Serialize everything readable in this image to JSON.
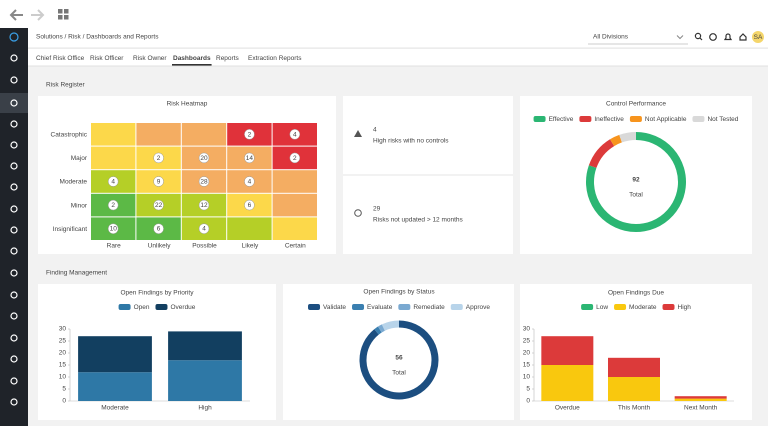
{
  "top_bar": {
    "breadcrumb": "Solutions / Risk / Dashboards and Reports",
    "division": "All Divisions",
    "user_initials": "SA"
  },
  "tabs": {
    "items": [
      "Chief Risk Office",
      "Risk Officer",
      "Risk Owner",
      "Dashboards",
      "Reports",
      "Extraction Reports"
    ],
    "active": 3
  },
  "risk_register": {
    "title": "Risk Register",
    "heatmap": {
      "title": "Risk Heatmap",
      "rows": [
        "Catastrophic",
        "Major",
        "Moderate",
        "Minor",
        "Insignificant"
      ],
      "columns": [
        "Rare",
        "Unlikely",
        "Possible",
        "Likely",
        "Certain"
      ],
      "counts": [
        [
          null,
          null,
          null,
          2,
          4
        ],
        [
          null,
          2,
          20,
          14,
          2
        ],
        [
          4,
          9,
          28,
          4,
          null
        ],
        [
          2,
          22,
          12,
          6,
          null
        ],
        [
          10,
          6,
          4,
          null,
          null
        ]
      ],
      "colors": [
        [
          "#fcd84a",
          "#f4ad62",
          "#f4ad62",
          "#e0323a",
          "#e0323a"
        ],
        [
          "#fcd84a",
          "#fcd84a",
          "#f4ad62",
          "#f4ad62",
          "#e0323a"
        ],
        [
          "#b5cf27",
          "#fcd84a",
          "#f4ad62",
          "#f4ad62",
          "#f4ad62"
        ],
        [
          "#5cb946",
          "#b5cf27",
          "#b5cf27",
          "#fcd84a",
          "#f4ad62"
        ],
        [
          "#5cb946",
          "#5cb946",
          "#b5cf27",
          "#b5cf27",
          "#fcd84a"
        ]
      ]
    },
    "kpis": [
      {
        "value": 4,
        "label": "High risks with no controls",
        "color": "#e0323a"
      },
      {
        "value": 29,
        "label": "Risks not updated > 12 months",
        "color": "#8a8a8a"
      }
    ],
    "control_performance": {
      "type": "donut",
      "title": "Control Performance",
      "categories": [
        "Effective",
        "Ineffective",
        "Not Applicable",
        "Not Tested"
      ],
      "values": [
        74,
        10,
        3,
        5
      ],
      "colors": [
        "#2bb673",
        "#dc3a3a",
        "#f7941d",
        "#d9d9d9"
      ],
      "center_value": 92,
      "center_label": "Total"
    }
  },
  "finding_management": {
    "title": "Finding Management",
    "charts": [
      {
        "type": "bar",
        "stacked": true,
        "title": "Open Findings by Priority",
        "categories": [
          "Moderate",
          "High"
        ],
        "series": [
          {
            "name": "Open",
            "color": "#2e78a6",
            "values": [
              12,
              17
            ]
          },
          {
            "name": "Overdue",
            "color": "#123f60",
            "values": [
              15,
              12
            ]
          }
        ],
        "ylim": [
          0,
          30
        ],
        "yticks": [
          0,
          5,
          10,
          15,
          20,
          25,
          30
        ],
        "grid": false
      },
      {
        "type": "donut",
        "title": "Open Findings by Status",
        "categories": [
          "Validate",
          "Evaluate",
          "Remediate",
          "Approve"
        ],
        "values": [
          50,
          1,
          1,
          4
        ],
        "colors": [
          "#1c4e80",
          "#3a7fb0",
          "#7aa9d1",
          "#b8d4ea"
        ],
        "center_value": 56,
        "center_label": "Total"
      },
      {
        "type": "bar",
        "stacked": true,
        "title": "Open Findings Due",
        "categories": [
          "Overdue",
          "This Month",
          "Next Month"
        ],
        "series": [
          {
            "name": "Low",
            "color": "#2bb673",
            "values": [
              0,
              0,
              0
            ]
          },
          {
            "name": "Moderate",
            "color": "#f9c80e",
            "values": [
              15,
              10,
              1
            ]
          },
          {
            "name": "High",
            "color": "#dc3a3a",
            "values": [
              12,
              8,
              1
            ]
          }
        ],
        "ylim": [
          0,
          30
        ],
        "yticks": [
          0,
          5,
          10,
          15,
          20,
          25,
          30
        ],
        "grid": false
      }
    ]
  }
}
